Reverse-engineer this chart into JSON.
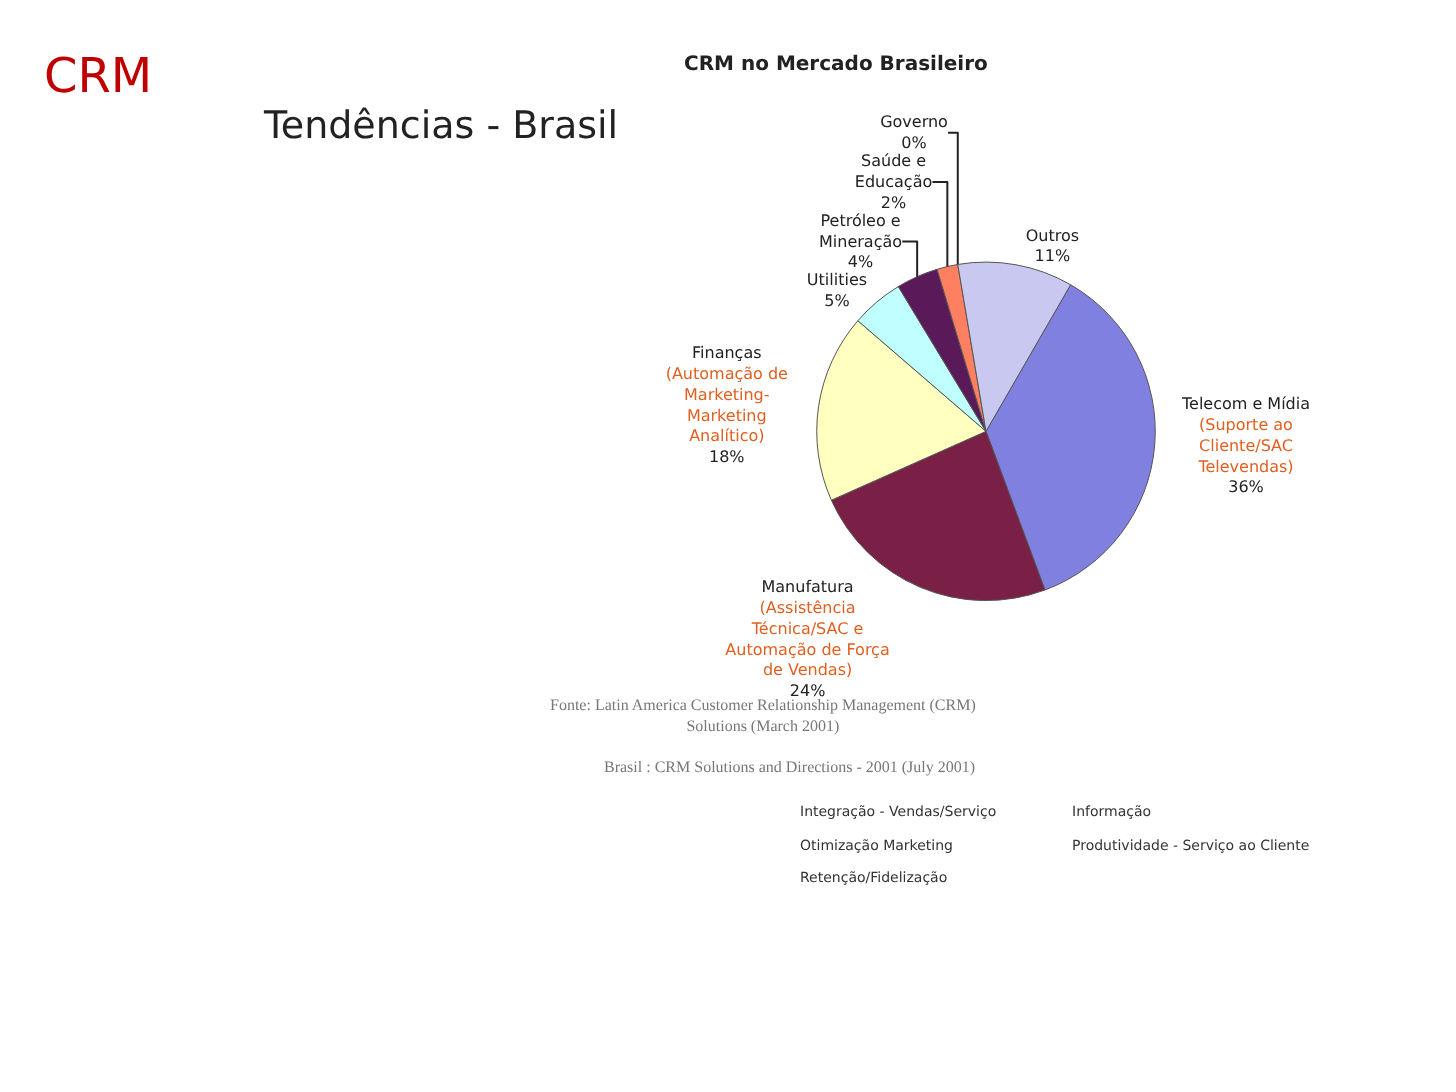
{
  "chart_data": {
    "type": "pie",
    "title": "Tendências - Brasil",
    "subtitle": "CRM no Mercado Brasileiro",
    "categories": [
      "Telecom e Mídia (Suporte ao Cliente/SAC Televendas)",
      "Manufatura (Assistência Técnica/SAC e Automação de Força de Vendas)",
      "Finanças (Automação de Marketing-Marketing Analítico)",
      "Utilities",
      "Petróleo e Mineração",
      "Saúde e Educação",
      "Governo",
      "Outros"
    ],
    "values": [
      36,
      24,
      18,
      5,
      4,
      2,
      0,
      11
    ],
    "colors": [
      "#8080e0",
      "#7a1f45",
      "#ffffc0",
      "#c0ffff",
      "#5a1a5a",
      "#ff8060",
      "#3060a0",
      "#c8c8f0"
    ],
    "value_labels": [
      "36%",
      "24%",
      "18%",
      "5%",
      "4%",
      "2%",
      "0%",
      "11%"
    ],
    "annotations": [
      "CRM",
      "Fonte: Latin America Customer Relationship Management (CRM) Solutions (March 2001)",
      "Brasil : CRM Solutions and Directions - 2001 (July 2001)",
      "Integração - Vendas/Serviço",
      "Informação",
      "Otimização Marketing",
      "Produtividade - Serviço ao Cliente",
      "Retenção/Fidelização"
    ]
  }
}
